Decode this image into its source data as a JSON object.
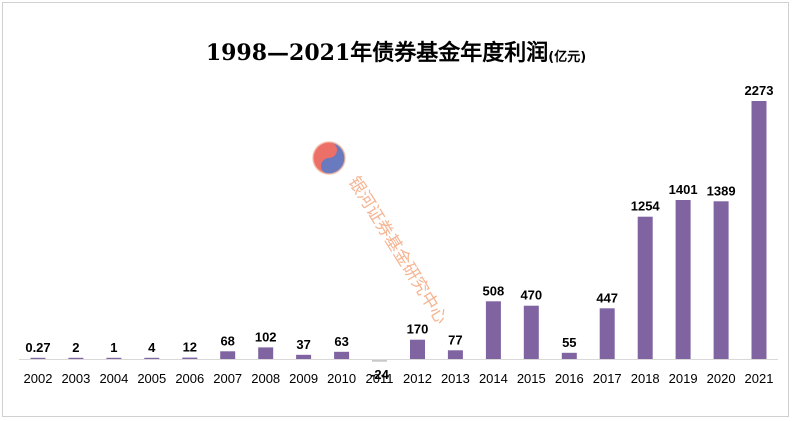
{
  "chart_data": {
    "type": "bar",
    "title": "1998—2021年债券基金年度利润",
    "title_unit": "(亿元)",
    "xlabel": "",
    "ylabel": "",
    "categories": [
      "2002",
      "2003",
      "2004",
      "2005",
      "2006",
      "2007",
      "2008",
      "2009",
      "2010",
      "2011",
      "2012",
      "2013",
      "2014",
      "2015",
      "2016",
      "2017",
      "2018",
      "2019",
      "2020",
      "2021"
    ],
    "values": [
      0.27,
      2,
      1,
      4,
      12,
      68,
      102,
      37,
      63,
      -24,
      170,
      77,
      508,
      470,
      55,
      447,
      1254,
      1401,
      1389,
      2273
    ],
    "value_labels": [
      "0.27",
      "2",
      "1",
      "4",
      "12",
      "68",
      "102",
      "37",
      "63",
      "-24",
      "170",
      "77",
      "508",
      "470",
      "55",
      "447",
      "1254",
      "1401",
      "1389",
      "2273"
    ],
    "ylim": [
      -40,
      2300
    ],
    "grid": false,
    "legend": "none",
    "colors": {
      "bar": "#8064a2",
      "bar_negative": "#c8c8c8"
    }
  },
  "watermark": {
    "text": "银河证券基金研究中心",
    "logo": "galaxy-securities-logo"
  }
}
